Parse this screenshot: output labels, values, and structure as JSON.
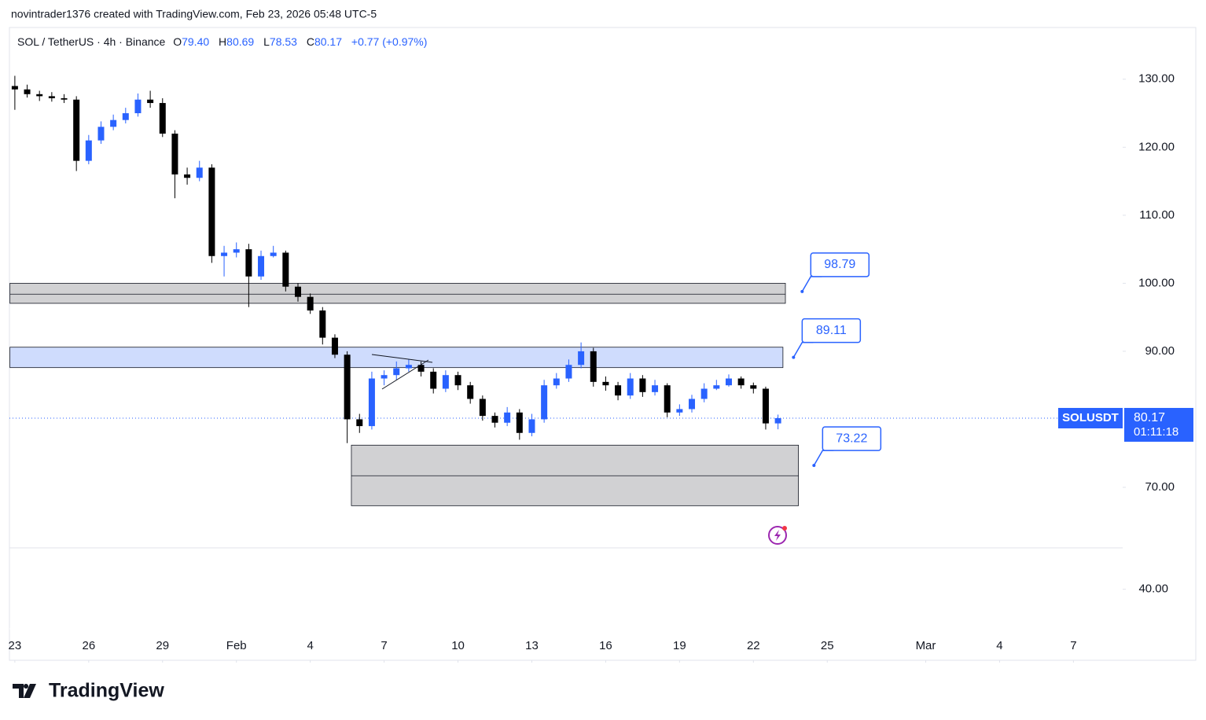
{
  "header": {
    "credit": "novintrader1376 created with TradingView.com, Feb 23, 2026 05:48 UTC-5",
    "logo": "TradingView"
  },
  "chart_data": {
    "type": "candlestick",
    "symbol_line": "SOL / TetherUS · 4h · Binance",
    "ohlc": [
      {
        "label": "O",
        "value": "79.40"
      },
      {
        "label": "H",
        "value": "80.69"
      },
      {
        "label": "L",
        "value": "78.53"
      },
      {
        "label": "C",
        "value": "80.17"
      }
    ],
    "change": "+0.77 (+0.97%)",
    "up_color": "#2962ff",
    "down_color": "#000000",
    "x": [
      0,
      0.5,
      1,
      1.5,
      2,
      2.5,
      3,
      3.5,
      4,
      4.5,
      5,
      5.5,
      6,
      6.5,
      7,
      7.5,
      8,
      8.5,
      9,
      9.5,
      10,
      10.5,
      11,
      11.5,
      12,
      12.5,
      13,
      13.5,
      14,
      14.5,
      15,
      15.5,
      16,
      16.5,
      17,
      17.5,
      18,
      18.5,
      19,
      19.5,
      20,
      20.5,
      21,
      21.5,
      22,
      22.5,
      23,
      23.5,
      24,
      24.5,
      25,
      25.5,
      26,
      26.5,
      27,
      27.5,
      28,
      28.5,
      29,
      29.5,
      30,
      30.5,
      31
    ],
    "open": [
      129,
      128.5,
      127.8,
      127.5,
      127.2,
      127,
      118,
      121,
      123,
      124,
      125,
      127,
      126.5,
      122,
      116,
      115.5,
      117,
      104,
      104.5,
      105,
      101,
      104,
      104.5,
      99.5,
      98,
      96,
      92,
      89.5,
      80,
      79,
      86,
      86.5,
      87.5,
      88,
      87,
      84.5,
      86.5,
      85,
      83,
      80.5,
      79.5,
      81,
      78,
      80,
      85,
      86,
      88,
      90,
      85.5,
      85,
      83.5,
      86,
      84,
      85,
      81,
      81.5,
      83,
      84.5,
      85,
      86,
      85,
      84.5,
      79.4
    ],
    "high": [
      130.5,
      129.2,
      128.3,
      128.1,
      127.8,
      127.5,
      121.8,
      123.8,
      124.8,
      125.8,
      127.9,
      128.3,
      127.2,
      122.5,
      117,
      118,
      117.5,
      105.5,
      106,
      105.8,
      104.8,
      105.5,
      104.8,
      100,
      98.5,
      96.5,
      92.5,
      90,
      80.8,
      87,
      87.2,
      88.5,
      88.8,
      88.5,
      87.5,
      87.2,
      87,
      85.5,
      83.5,
      81,
      81.8,
      81.5,
      80.8,
      85.8,
      86.8,
      88.8,
      91.3,
      90.5,
      86.3,
      85.5,
      86.8,
      86.5,
      85.8,
      85.3,
      82.2,
      83.6,
      85.3,
      85.8,
      86.6,
      86.3,
      85.4,
      84.8,
      80.69
    ],
    "low": [
      125.5,
      127.3,
      126.8,
      126.7,
      126.5,
      116.5,
      117.5,
      120.5,
      122.5,
      123.5,
      124.5,
      125.8,
      121.5,
      112.5,
      114.5,
      115,
      103,
      101,
      103.8,
      96.5,
      100.5,
      103.8,
      98.8,
      97.3,
      95.5,
      91,
      89,
      76.5,
      78,
      78.5,
      85,
      85.8,
      87,
      86.3,
      83.8,
      84,
      84.3,
      82.3,
      79.8,
      78.8,
      79,
      77,
      77.5,
      79.5,
      84.5,
      85.5,
      87.5,
      84.8,
      84.2,
      82.8,
      83,
      83.3,
      83.5,
      80.3,
      80.5,
      81,
      82.5,
      84.3,
      84.8,
      84.5,
      83.8,
      78.5,
      78.53
    ],
    "close": [
      128.5,
      127.8,
      127.5,
      127.2,
      127,
      118,
      121,
      123,
      124,
      125,
      127,
      126.5,
      122,
      116,
      115.5,
      117,
      104,
      104.5,
      105,
      101,
      104,
      104.5,
      99.5,
      98,
      96,
      92,
      89.5,
      80,
      79,
      86,
      86.5,
      87.5,
      88,
      87,
      84.5,
      86.5,
      85,
      83,
      80.5,
      79.5,
      81,
      78,
      80,
      85,
      86,
      88,
      90,
      85.5,
      85,
      83.5,
      86,
      84,
      85,
      81,
      81.5,
      83,
      84.5,
      85,
      86,
      85,
      84.5,
      79.4,
      80.17
    ],
    "xlim": [
      -0.22,
      45.0
    ],
    "xticks": [
      {
        "value": 0,
        "label": "23"
      },
      {
        "value": 3,
        "label": "26"
      },
      {
        "value": 6,
        "label": "29"
      },
      {
        "value": 9,
        "label": "Feb"
      },
      {
        "value": 12,
        "label": "4"
      },
      {
        "value": 15,
        "label": "7"
      },
      {
        "value": 18,
        "label": "10"
      },
      {
        "value": 21,
        "label": "13"
      },
      {
        "value": 24,
        "label": "16"
      },
      {
        "value": 27,
        "label": "19"
      },
      {
        "value": 30,
        "label": "22"
      },
      {
        "value": 33,
        "label": "25"
      },
      {
        "value": 37,
        "label": "Mar"
      },
      {
        "value": 40,
        "label": "4"
      },
      {
        "value": 43,
        "label": "7"
      }
    ],
    "ylim": [
      61.1,
      137.6
    ],
    "yticks": [
      {
        "value": 130,
        "label": "130.00"
      },
      {
        "value": 120,
        "label": "120.00"
      },
      {
        "value": 110,
        "label": "110.00"
      },
      {
        "value": 100,
        "label": "100.00"
      },
      {
        "value": 90,
        "label": "90.00"
      },
      {
        "value": 70,
        "label": "70.00"
      }
    ],
    "zones": [
      {
        "top": 100,
        "bottom": 97.05,
        "mid": 98.4,
        "start": -0.2,
        "end": 31.3,
        "color": "#d1d1d3"
      },
      {
        "top": 90.6,
        "bottom": 87.6,
        "start": -0.2,
        "end": 31.2,
        "color": "#cfdcfd"
      },
      {
        "top": 76.2,
        "bottom": 67.3,
        "mid": 71.7,
        "start": 13.67,
        "end": 31.83,
        "color": "#d1d1d3"
      }
    ],
    "annotations": [
      {
        "label": "98.79",
        "value": 98.79,
        "x": 31.98
      },
      {
        "label": "89.11",
        "value": 89.11,
        "x": 31.63
      },
      {
        "label": "73.22",
        "value": 73.22,
        "x": 32.46
      }
    ],
    "last_price": {
      "symbol": "SOLUSDT",
      "value": 80.17,
      "label": "80.17",
      "countdown": "01:11:18",
      "color": "#2962ff"
    },
    "lower_pane": {
      "ylim": [
        28,
        47
      ],
      "yticks": [
        {
          "value": 40,
          "label": "40.00"
        }
      ]
    }
  }
}
